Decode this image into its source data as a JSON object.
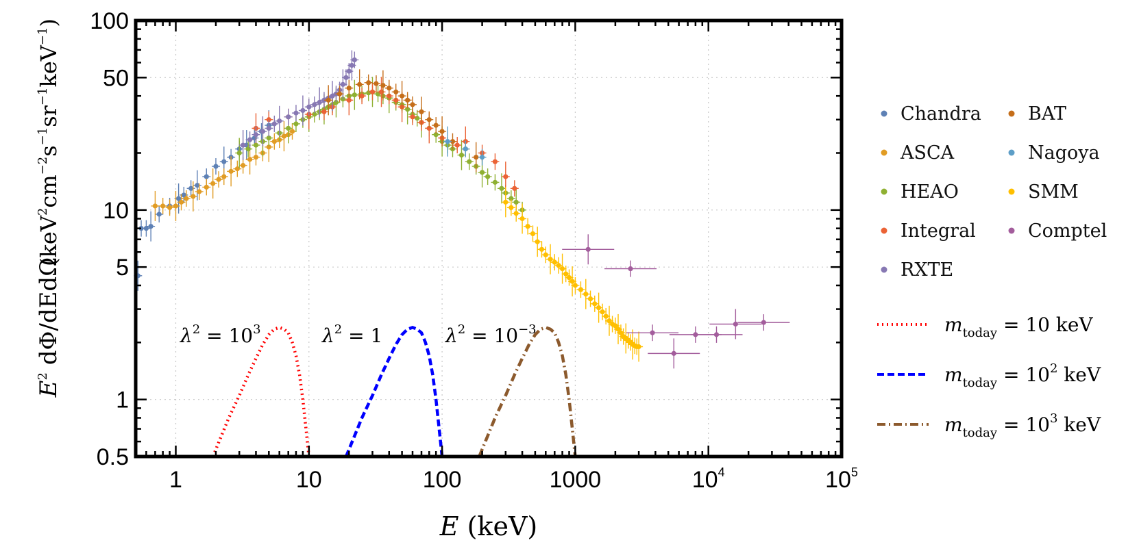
{
  "chart_data": {
    "type": "scatter",
    "xlabel": "E (keV)",
    "ylabel": "E^2 dΦ/(dE dΩ) (keV^2 cm^-2 s^-1 sr^-1 keV^-1)",
    "xscale": "log",
    "yscale": "log",
    "xlim": [
      0.5,
      100000
    ],
    "ylim": [
      0.5,
      100
    ],
    "grid": true,
    "legend_position": "right",
    "x_ticks": [
      {
        "value": 1,
        "label": "1"
      },
      {
        "value": 10,
        "label": "10"
      },
      {
        "value": 100,
        "label": "100"
      },
      {
        "value": 1000,
        "label": "1000"
      },
      {
        "value": 10000,
        "label": "10",
        "exp": "4"
      },
      {
        "value": 100000,
        "label": "10",
        "exp": "5"
      }
    ],
    "y_ticks": [
      {
        "value": 0.5,
        "label": "0.5"
      },
      {
        "value": 1,
        "label": "1"
      },
      {
        "value": 5,
        "label": "5"
      },
      {
        "value": 10,
        "label": "10"
      },
      {
        "value": 50,
        "label": "50"
      },
      {
        "value": 100,
        "label": "100"
      }
    ],
    "series": [
      {
        "name": "Chandra",
        "color": "#5e81b5",
        "points": [
          [
            0.52,
            4.5
          ],
          [
            0.55,
            8
          ],
          [
            0.6,
            8
          ],
          [
            0.65,
            8.2
          ],
          [
            0.75,
            9.5
          ],
          [
            0.9,
            10.5
          ],
          [
            1.05,
            11.5
          ],
          [
            1.15,
            12
          ],
          [
            1.3,
            13
          ],
          [
            1.45,
            13.5
          ],
          [
            1.7,
            15
          ],
          [
            2.0,
            17
          ],
          [
            2.3,
            18
          ],
          [
            2.6,
            19
          ],
          [
            3.0,
            21
          ],
          [
            3.4,
            22
          ],
          [
            3.9,
            24
          ],
          [
            4.4,
            26
          ],
          [
            5.0,
            28
          ]
        ]
      },
      {
        "name": "ASCA",
        "color": "#e19c24",
        "points": [
          [
            0.7,
            10.5
          ],
          [
            0.8,
            10.5
          ],
          [
            0.9,
            10.3
          ],
          [
            1.0,
            10.5
          ],
          [
            1.1,
            11
          ],
          [
            1.2,
            11.5
          ],
          [
            1.35,
            11.8
          ],
          [
            1.5,
            12.5
          ],
          [
            1.7,
            13.2
          ],
          [
            1.9,
            13.8
          ],
          [
            2.1,
            14.5
          ],
          [
            2.3,
            15
          ],
          [
            2.6,
            16
          ],
          [
            2.9,
            16.5
          ],
          [
            3.2,
            17.2
          ],
          [
            3.6,
            18.5
          ],
          [
            4.0,
            19
          ],
          [
            4.5,
            20
          ],
          [
            5.0,
            21.5
          ],
          [
            5.5,
            23
          ],
          [
            6.0,
            23.5
          ],
          [
            6.5,
            24.5
          ],
          [
            7.0,
            25
          ],
          [
            7.5,
            26
          ]
        ]
      },
      {
        "name": "HEAO",
        "color": "#8fb032",
        "points": [
          [
            3.0,
            20
          ],
          [
            3.5,
            21
          ],
          [
            4.0,
            22
          ],
          [
            4.5,
            23
          ],
          [
            5.0,
            24
          ],
          [
            6.0,
            25.5
          ],
          [
            7.0,
            27
          ],
          [
            8.0,
            28.5
          ],
          [
            9.0,
            30
          ],
          [
            10,
            31
          ],
          [
            11,
            32
          ],
          [
            12,
            33
          ],
          [
            13,
            34
          ],
          [
            14,
            35
          ],
          [
            15,
            36
          ],
          [
            16,
            37
          ],
          [
            18,
            38.5
          ],
          [
            20,
            40
          ],
          [
            22,
            40.5
          ],
          [
            25,
            41
          ],
          [
            28,
            41.5
          ],
          [
            30,
            42
          ],
          [
            33,
            41
          ],
          [
            36,
            40
          ],
          [
            40,
            39
          ],
          [
            45,
            37
          ],
          [
            50,
            36
          ],
          [
            55,
            34
          ],
          [
            60,
            32
          ],
          [
            65,
            30.5
          ],
          [
            70,
            29
          ],
          [
            80,
            27
          ],
          [
            90,
            25
          ],
          [
            100,
            23
          ],
          [
            110,
            22
          ],
          [
            120,
            21
          ],
          [
            140,
            19.5
          ],
          [
            160,
            18
          ],
          [
            180,
            17
          ],
          [
            200,
            15.8
          ],
          [
            220,
            15
          ],
          [
            250,
            14
          ],
          [
            280,
            13
          ],
          [
            300,
            12.3
          ],
          [
            330,
            11.5
          ],
          [
            360,
            11
          ],
          [
            400,
            10
          ]
        ]
      },
      {
        "name": "Integral",
        "color": "#eb6235",
        "points": [
          [
            4.0,
            27
          ],
          [
            5.0,
            30
          ],
          [
            7.0,
            31
          ],
          [
            10,
            32
          ],
          [
            13,
            33
          ],
          [
            15,
            35
          ],
          [
            20,
            38
          ],
          [
            25,
            40
          ],
          [
            30,
            42
          ],
          [
            35,
            42
          ],
          [
            40,
            40
          ],
          [
            45,
            38
          ],
          [
            50,
            35
          ],
          [
            60,
            31
          ],
          [
            70,
            29
          ],
          [
            80,
            27
          ],
          [
            100,
            24
          ],
          [
            130,
            22
          ],
          [
            150,
            23
          ],
          [
            200,
            20
          ],
          [
            250,
            18
          ],
          [
            300,
            15
          ],
          [
            350,
            13
          ]
        ]
      },
      {
        "name": "RXTE",
        "color": "#8778b3",
        "points": [
          [
            3.2,
            22
          ],
          [
            3.6,
            23.5
          ],
          [
            4.0,
            25
          ],
          [
            4.5,
            26
          ],
          [
            5.0,
            27
          ],
          [
            5.5,
            28.5
          ],
          [
            6.0,
            29.5
          ],
          [
            7.0,
            31
          ],
          [
            8.0,
            32.5
          ],
          [
            9.0,
            33.5
          ],
          [
            10,
            35
          ],
          [
            11,
            36
          ],
          [
            12,
            37
          ],
          [
            13,
            38
          ],
          [
            14,
            39
          ],
          [
            15,
            40
          ],
          [
            16,
            41
          ],
          [
            17,
            43
          ],
          [
            18,
            46
          ],
          [
            19,
            50
          ],
          [
            20,
            54
          ],
          [
            21,
            58
          ],
          [
            22,
            62
          ]
        ]
      },
      {
        "name": "BAT",
        "color": "#c56e1a",
        "points": [
          [
            14,
            38
          ],
          [
            17,
            41
          ],
          [
            20,
            44
          ],
          [
            24,
            46
          ],
          [
            28,
            47
          ],
          [
            32,
            46.5
          ],
          [
            36,
            45.5
          ],
          [
            40,
            44
          ],
          [
            45,
            42
          ],
          [
            50,
            40
          ],
          [
            55,
            38
          ],
          [
            60,
            36
          ],
          [
            70,
            33
          ],
          [
            80,
            30
          ],
          [
            90,
            28
          ],
          [
            100,
            26
          ],
          [
            120,
            23
          ],
          [
            150,
            21
          ],
          [
            180,
            19
          ]
        ]
      },
      {
        "name": "Nagoya",
        "color": "#5d9ec7",
        "points": [
          [
            110,
            23
          ],
          [
            150,
            21
          ],
          [
            200,
            19
          ]
        ]
      },
      {
        "name": "SMM",
        "color": "#ffbf00",
        "points": [
          [
            300,
            11
          ],
          [
            330,
            10.3
          ],
          [
            360,
            9.6
          ],
          [
            400,
            9
          ],
          [
            440,
            8.2
          ],
          [
            480,
            7.5
          ],
          [
            520,
            6.8
          ],
          [
            560,
            6.2
          ],
          [
            600,
            5.8
          ],
          [
            650,
            5.5
          ],
          [
            700,
            5.3
          ],
          [
            750,
            5.1
          ],
          [
            800,
            4.9
          ],
          [
            850,
            4.6
          ],
          [
            900,
            4.4
          ],
          [
            950,
            4.2
          ],
          [
            1000,
            4.0
          ],
          [
            1100,
            3.8
          ],
          [
            1200,
            3.6
          ],
          [
            1300,
            3.4
          ],
          [
            1400,
            3.2
          ],
          [
            1500,
            3.05
          ],
          [
            1600,
            2.9
          ],
          [
            1700,
            2.75
          ],
          [
            1800,
            2.6
          ],
          [
            1900,
            2.5
          ],
          [
            2000,
            2.45
          ],
          [
            2100,
            2.35
          ],
          [
            2200,
            2.25
          ],
          [
            2300,
            2.15
          ],
          [
            2400,
            2.1
          ],
          [
            2500,
            2.05
          ],
          [
            2600,
            2.0
          ],
          [
            2700,
            1.95
          ],
          [
            2800,
            1.92
          ],
          [
            2900,
            1.9
          ],
          [
            3000,
            1.9
          ]
        ]
      },
      {
        "name": "Comptel",
        "color": "#a35d9c",
        "points": [
          [
            1250,
            6.2
          ],
          [
            2600,
            4.9
          ],
          [
            3800,
            2.25
          ],
          [
            5500,
            1.75
          ],
          [
            8000,
            2.2
          ],
          [
            11500,
            2.2
          ],
          [
            16000,
            2.5
          ],
          [
            26000,
            2.55
          ]
        ]
      }
    ],
    "models": [
      {
        "name": "m_today = 10 keV",
        "legend_base": "= 10 keV",
        "legend_exp": "",
        "style": "dotted",
        "color": "#ff0000",
        "annotation": "λ",
        "annotation_exp": "2",
        "annotation_rhs": "= 10",
        "annotation_rhs_exp": "3",
        "points": [
          [
            1.9,
            0.5
          ],
          [
            2.5,
            0.8
          ],
          [
            3.0,
            1.05
          ],
          [
            3.5,
            1.35
          ],
          [
            4.0,
            1.65
          ],
          [
            4.5,
            1.95
          ],
          [
            5.0,
            2.2
          ],
          [
            5.5,
            2.35
          ],
          [
            6.0,
            2.4
          ],
          [
            6.5,
            2.35
          ],
          [
            7.0,
            2.25
          ],
          [
            7.5,
            2.0
          ],
          [
            8.0,
            1.7
          ],
          [
            8.5,
            1.35
          ],
          [
            9.0,
            1.0
          ],
          [
            9.5,
            0.7
          ],
          [
            10,
            0.5
          ]
        ]
      },
      {
        "name": "m_today = 10^2 keV",
        "legend_base": "= 10",
        "legend_exp": "2",
        "legend_tail": " keV",
        "style": "dashed",
        "color": "#0000ff",
        "annotation": "λ",
        "annotation_exp": "2",
        "annotation_rhs": "= 1",
        "annotation_rhs_exp": "",
        "points": [
          [
            19,
            0.5
          ],
          [
            25,
            0.8
          ],
          [
            30,
            1.05
          ],
          [
            35,
            1.35
          ],
          [
            40,
            1.65
          ],
          [
            45,
            1.95
          ],
          [
            50,
            2.2
          ],
          [
            55,
            2.35
          ],
          [
            60,
            2.4
          ],
          [
            65,
            2.35
          ],
          [
            70,
            2.25
          ],
          [
            75,
            2.0
          ],
          [
            80,
            1.7
          ],
          [
            85,
            1.35
          ],
          [
            90,
            1.0
          ],
          [
            95,
            0.7
          ],
          [
            100,
            0.5
          ]
        ]
      },
      {
        "name": "m_today = 10^3 keV",
        "legend_base": "= 10",
        "legend_exp": "3",
        "legend_tail": " keV",
        "style": "dashdot",
        "color": "#8c5a2d",
        "annotation": "λ",
        "annotation_exp": "2",
        "annotation_rhs": "= 10",
        "annotation_rhs_exp": "−3",
        "points": [
          [
            190,
            0.5
          ],
          [
            250,
            0.8
          ],
          [
            300,
            1.05
          ],
          [
            350,
            1.35
          ],
          [
            400,
            1.65
          ],
          [
            450,
            1.95
          ],
          [
            500,
            2.2
          ],
          [
            550,
            2.35
          ],
          [
            600,
            2.4
          ],
          [
            650,
            2.35
          ],
          [
            700,
            2.25
          ],
          [
            750,
            2.0
          ],
          [
            800,
            1.7
          ],
          [
            850,
            1.35
          ],
          [
            900,
            1.0
          ],
          [
            950,
            0.7
          ],
          [
            1000,
            0.5
          ]
        ]
      }
    ]
  }
}
